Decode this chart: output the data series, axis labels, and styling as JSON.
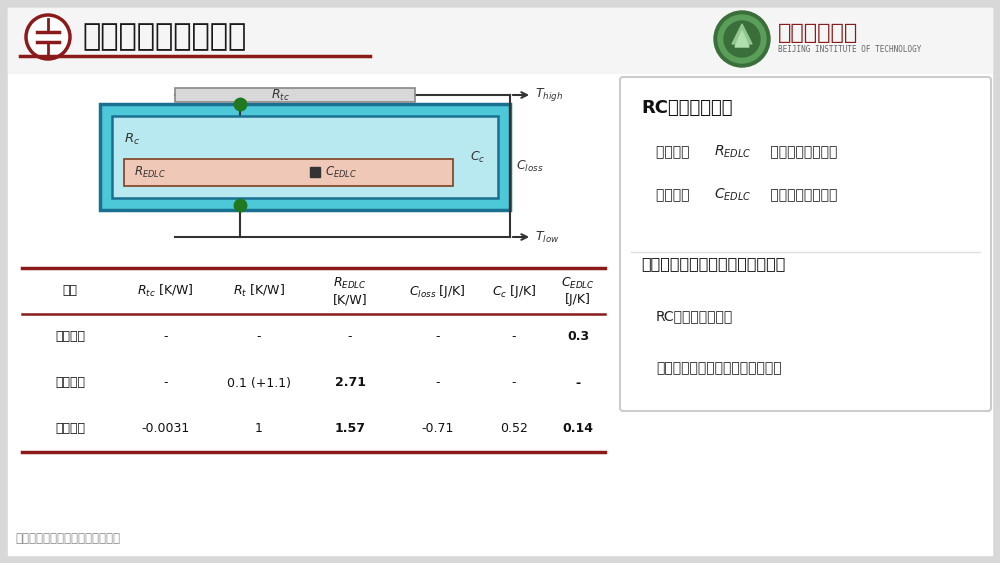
{
  "title": "热阻抗分析实验结果",
  "bg_color": "#e8e8e8",
  "slide_bg": "#ffffff",
  "title_color": "#222222",
  "header_line_color": "#8B1A1A",
  "table_rows": [
    [
      "数値模拟",
      "-",
      "-",
      "-",
      "-",
      "-",
      "0.3"
    ],
    [
      "理论计算",
      "-",
      "0.1 (+1.1)",
      "2.71",
      "-",
      "-",
      "-"
    ],
    [
      "实验结果",
      "-0.0031",
      "1",
      "1.57",
      "-0.71",
      "0.52",
      "0.14"
    ]
  ],
  "right_panel_title": "RC热路关键参数",
  "right_panel_item1a": "器件热阻 ",
  "right_panel_item1b": " （理论计算可得）",
  "right_panel_item2a": "器件热容 ",
  "right_panel_item2b": " （数値仳真可得）",
  "right_panel_title2": "实验拟合结果与理论计算结果吠合",
  "right_panel_item3": "RC热路模型有效！",
  "right_panel_item4": "可由热阻抗分析实验获器件热参数",
  "footer_text": "中国电工技术学会新媒体平台发布",
  "bit_name": "北京理工大学",
  "circuit_colors": {
    "outer_box_fill": "#4dc8d8",
    "outer_box_stroke": "#1a7090",
    "inner_box_fill": "#b8e8f0",
    "inner_box_stroke": "#1a7090",
    "bottom_box_fill": "#f0c8b8",
    "bottom_box_stroke": "#804020",
    "top_bar_fill": "#d8d8d8",
    "top_bar_stroke": "#888888",
    "node_color": "#207820",
    "wire_color": "#333333"
  }
}
